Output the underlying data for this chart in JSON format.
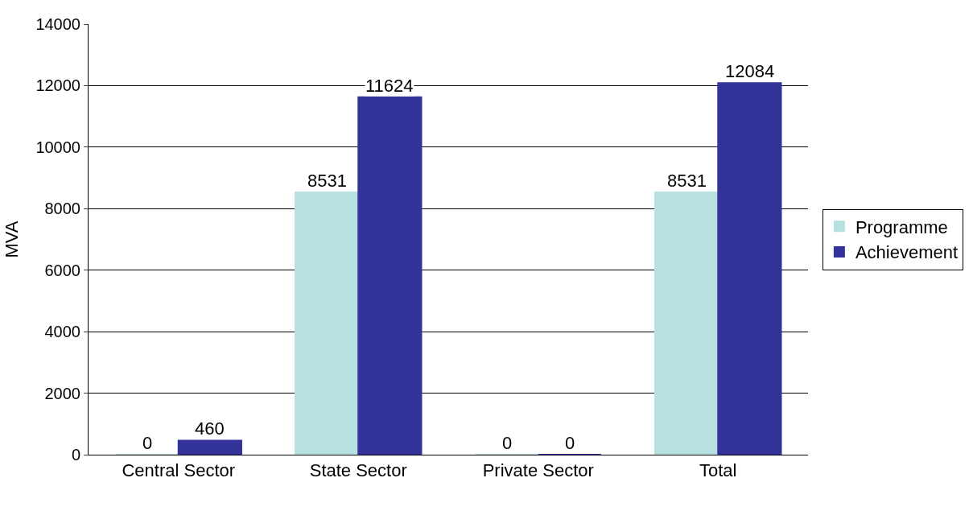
{
  "chart_data": {
    "type": "bar",
    "ylabel": "MVA",
    "categories": [
      "Central Sector",
      "State Sector",
      "Private Sector",
      "Total"
    ],
    "series": [
      {
        "name": "Programme",
        "color": "#b8e0e0",
        "values": [
          0,
          8531,
          0,
          8531
        ]
      },
      {
        "name": "Achievement",
        "color": "#333399",
        "values": [
          460,
          11624,
          0,
          12084
        ]
      }
    ],
    "ylim": [
      0,
      14000
    ],
    "yticks": [
      0,
      2000,
      4000,
      6000,
      8000,
      10000,
      12000,
      14000
    ],
    "grid": "y",
    "legend": "right",
    "data_labels": true
  }
}
